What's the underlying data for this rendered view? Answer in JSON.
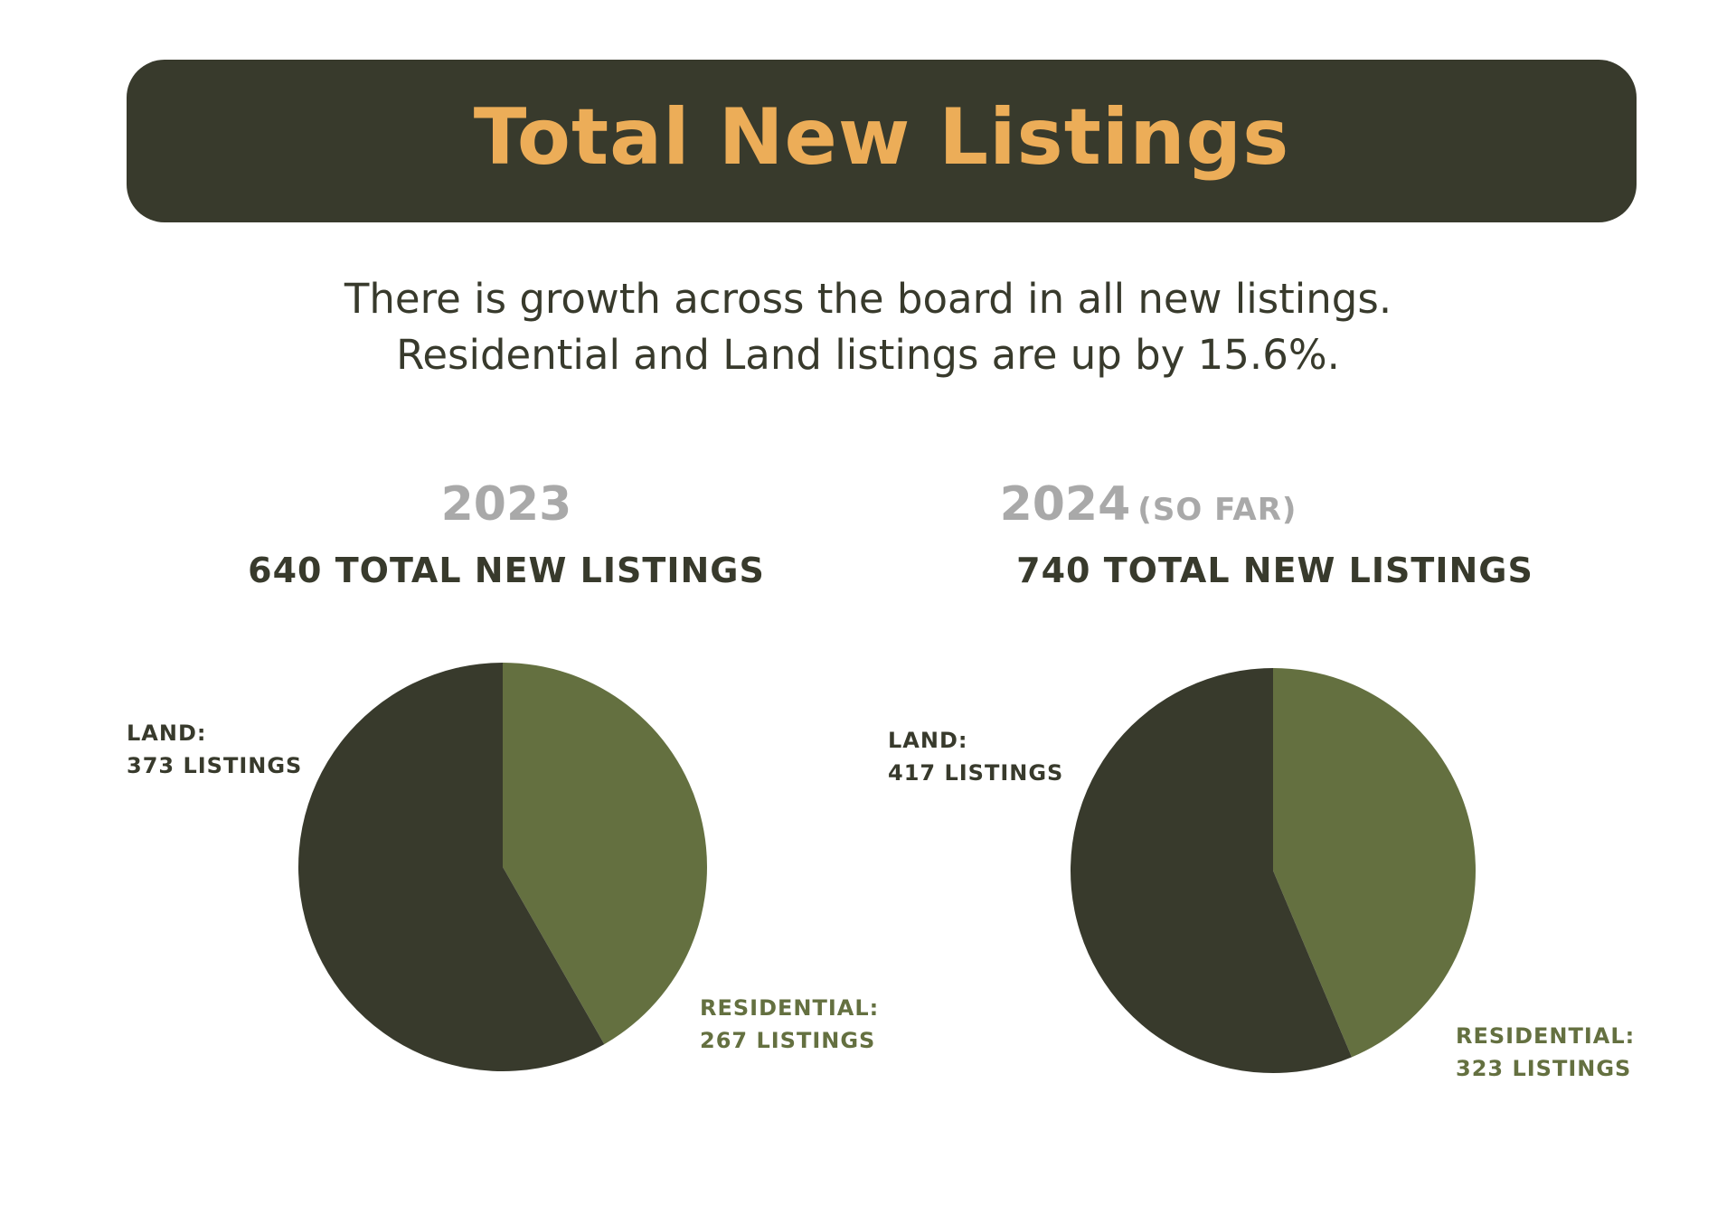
{
  "header": {
    "title": "Total New Listings"
  },
  "summary": {
    "line1": "There is growth across the board in all new listings.",
    "line2": "Residential and Land listings are up by 15.6%."
  },
  "colors": {
    "banner_bg": "#383a2c",
    "title": "#ecad58",
    "land": "#383a2c",
    "residential": "#647040",
    "year_text": "#a9a9a9"
  },
  "chart_data": [
    {
      "type": "pie",
      "title": "2023",
      "subtitle": "640 TOTAL NEW LISTINGS",
      "categories": [
        "Residential",
        "Land"
      ],
      "values": [
        267,
        373
      ],
      "labels": {
        "land_name": "LAND:",
        "land_value": "373 LISTINGS",
        "residential_name": "RESIDENTIAL:",
        "residential_value": "267 LISTINGS"
      }
    },
    {
      "type": "pie",
      "title": "2024",
      "title_note": "(SO FAR)",
      "subtitle": "740 TOTAL NEW LISTINGS",
      "categories": [
        "Residential",
        "Land"
      ],
      "values": [
        323,
        417
      ],
      "labels": {
        "land_name": "LAND:",
        "land_value": "417 LISTINGS",
        "residential_name": "RESIDENTIAL:",
        "residential_value": "323 LISTINGS"
      }
    }
  ]
}
